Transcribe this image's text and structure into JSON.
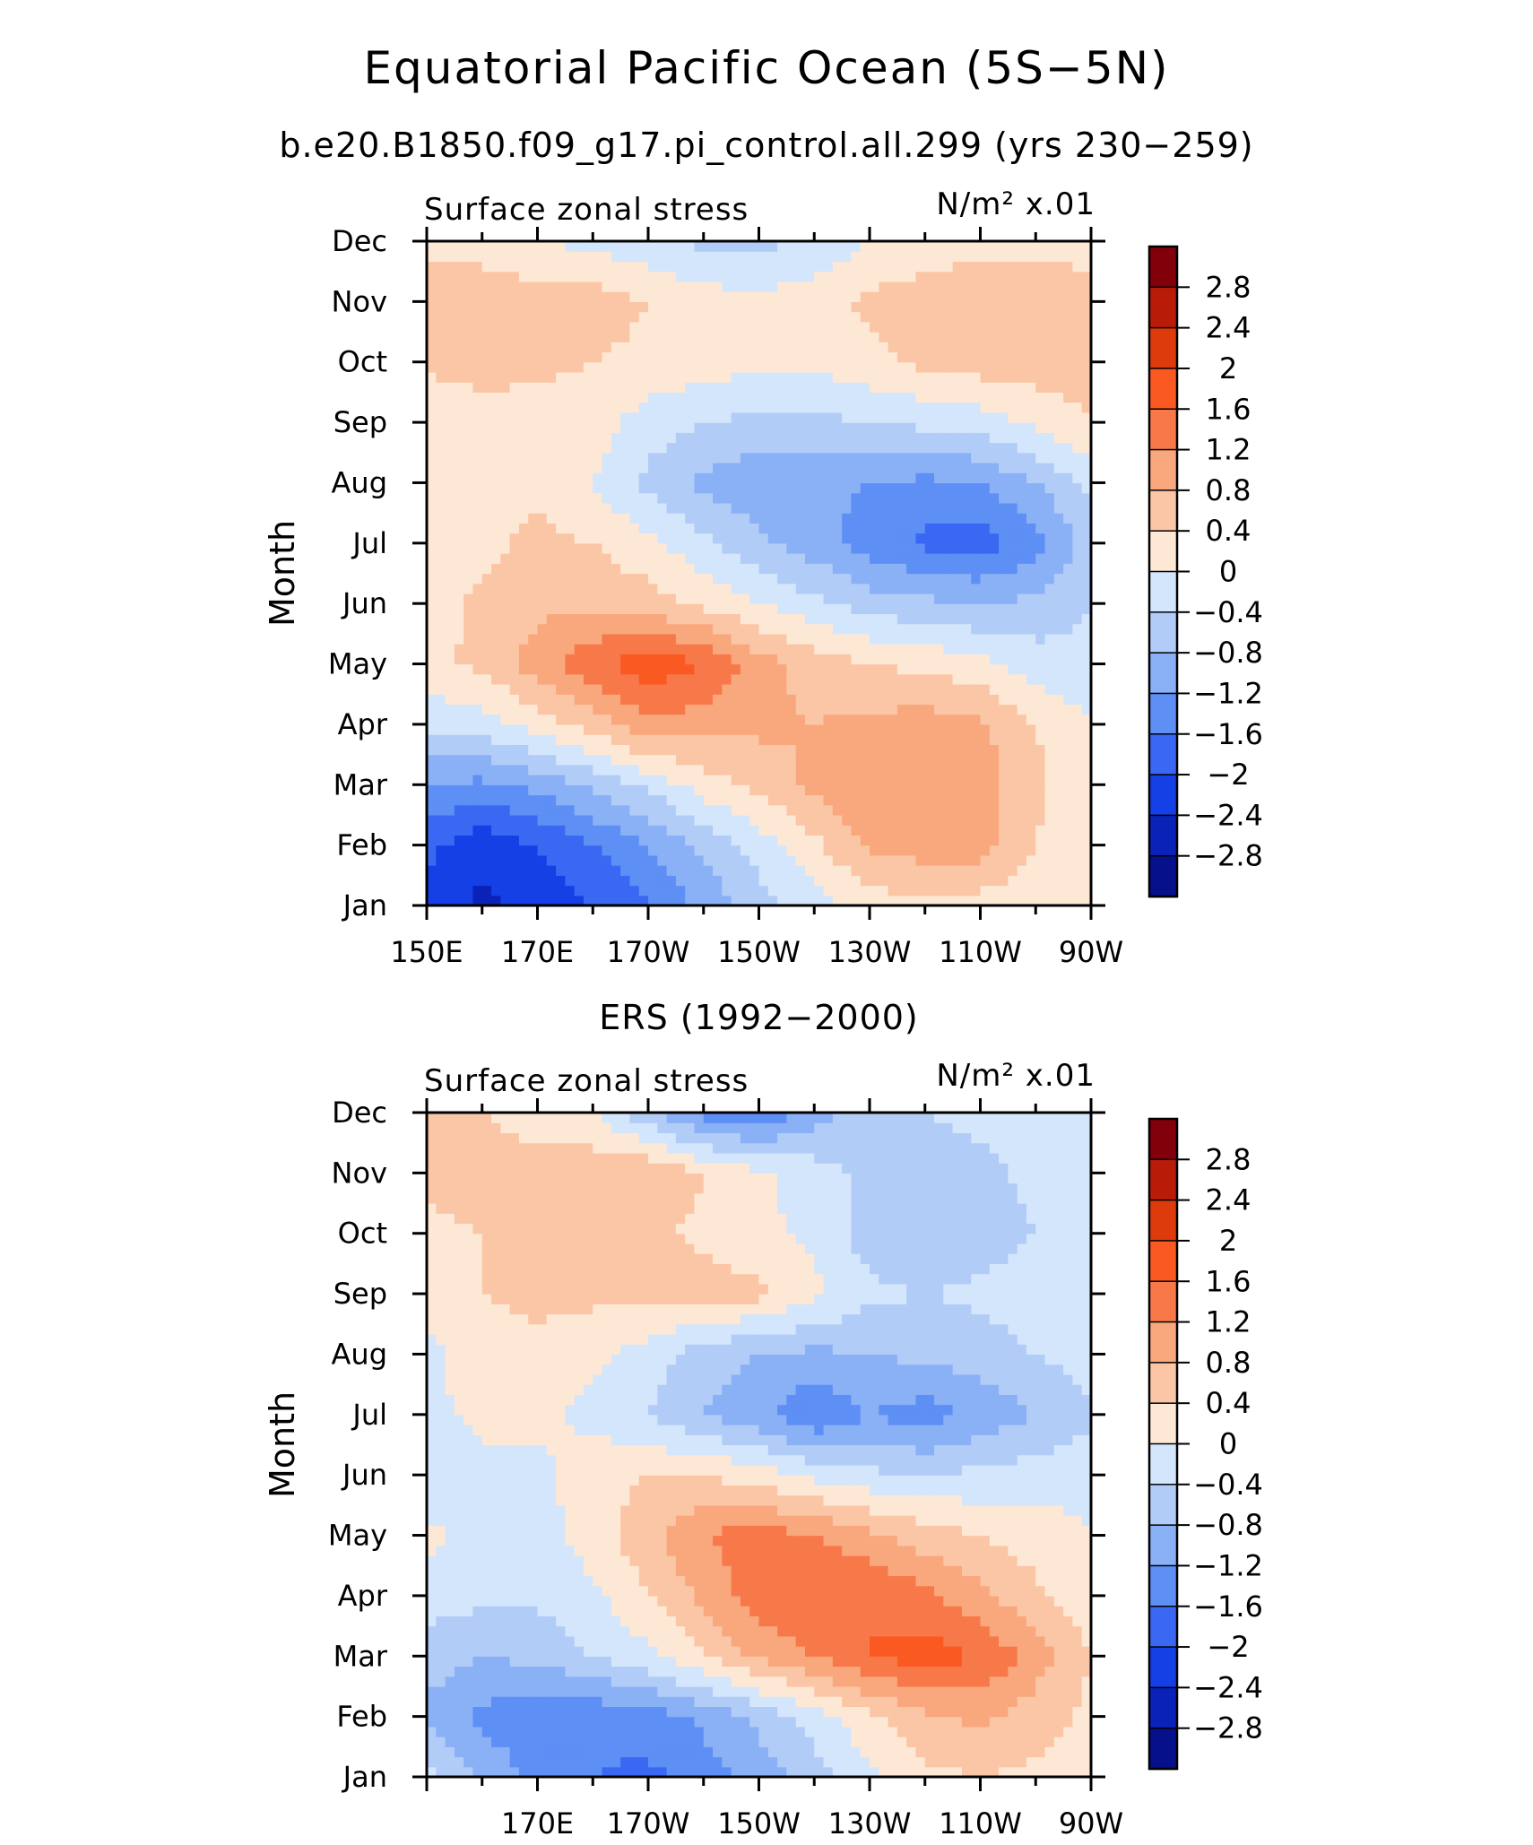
{
  "title": "Equatorial Pacific Ocean (5S−5N)",
  "subtitle": "b.e20.B1850.f09_g17.pi_control.all.299 (yrs 230−259)",
  "chart_data": [
    {
      "type": "heatmap",
      "panel_title": "",
      "variable": "Surface zonal stress",
      "units": "N/m² x.01",
      "ylabel": "Month",
      "xlabel": "",
      "x_tick_labels": [
        "150E",
        "170E",
        "170W",
        "150W",
        "130W",
        "110W",
        "90W"
      ],
      "x_range_deg_east": [
        150,
        270
      ],
      "y_tick_labels": [
        "Jan",
        "Feb",
        "Mar",
        "Apr",
        "May",
        "Jun",
        "Jul",
        "Aug",
        "Sep",
        "Oct",
        "Nov",
        "Dec"
      ],
      "colorbar_labels": [
        "2.8",
        "2.4",
        "2",
        "1.6",
        "1.2",
        "0.8",
        "0.4",
        "0",
        "−0.4",
        "−0.8",
        "−1.2",
        "−1.6",
        "−2",
        "−2.4",
        "−2.8"
      ],
      "colorbar_colors": [
        "#82000a",
        "#b81c08",
        "#dd3b0c",
        "#fa5a22",
        "#f7794a",
        "#f9a87e",
        "#fbc6a6",
        "#fde8d6",
        "#d4e6fb",
        "#b2ccf8",
        "#8ab0f6",
        "#5e8ff5",
        "#3a68f2",
        "#1440e6",
        "#0a22b8",
        "#05108a"
      ],
      "x_grid_deg_east": [
        150,
        160,
        170,
        180,
        190,
        200,
        210,
        220,
        230,
        240,
        250,
        260,
        270
      ],
      "values": [
        [
          -2.1,
          -2.5,
          -2.3,
          -2.0,
          -1.6,
          -1.1,
          -0.6,
          -0.2,
          0.2,
          0.3,
          0.2,
          0.1,
          0.0
        ],
        [
          -1.9,
          -2.3,
          -2.0,
          -1.6,
          -1.2,
          -0.7,
          -0.2,
          0.3,
          0.9,
          1.0,
          1.0,
          0.4,
          0.1
        ],
        [
          -1.2,
          -1.3,
          -1.1,
          -0.7,
          -0.3,
          0.2,
          0.5,
          0.9,
          1.1,
          1.2,
          1.0,
          0.5,
          0.1
        ],
        [
          -0.3,
          -0.2,
          0.2,
          0.6,
          1.1,
          1.0,
          0.9,
          0.8,
          0.9,
          1.0,
          0.9,
          0.4,
          0.0
        ],
        [
          0.3,
          0.5,
          1.0,
          1.5,
          1.9,
          1.6,
          1.0,
          0.6,
          0.4,
          0.3,
          0.1,
          -0.2,
          -0.3
        ],
        [
          0.2,
          0.5,
          0.7,
          0.7,
          0.6,
          0.3,
          0.0,
          -0.3,
          -0.6,
          -0.7,
          -0.8,
          -0.7,
          -0.4
        ],
        [
          0.1,
          0.3,
          0.5,
          0.4,
          0.1,
          -0.3,
          -0.7,
          -1.0,
          -1.4,
          -1.7,
          -1.8,
          -1.4,
          -0.6
        ],
        [
          0.1,
          0.2,
          0.3,
          0.0,
          -0.5,
          -0.9,
          -1.1,
          -1.1,
          -1.2,
          -1.3,
          -1.2,
          -0.8,
          -0.3
        ],
        [
          0.0,
          0.2,
          0.2,
          0.2,
          -0.2,
          -0.4,
          -0.5,
          -0.5,
          -0.4,
          -0.3,
          -0.2,
          0.1,
          0.4
        ],
        [
          0.5,
          0.6,
          0.5,
          0.4,
          0.3,
          0.2,
          0.1,
          0.1,
          0.3,
          0.5,
          0.6,
          0.6,
          0.6
        ],
        [
          0.7,
          0.7,
          0.6,
          0.6,
          0.4,
          0.2,
          0.1,
          0.2,
          0.5,
          0.6,
          0.6,
          0.6,
          0.5
        ],
        [
          0.3,
          0.2,
          0.0,
          -0.1,
          -0.3,
          -0.5,
          -0.5,
          -0.3,
          0.0,
          0.2,
          0.3,
          0.3,
          0.3
        ]
      ]
    },
    {
      "type": "heatmap",
      "panel_title": "ERS (1992−2000)",
      "variable": "Surface zonal stress",
      "units": "N/m² x.01",
      "ylabel": "Month",
      "xlabel": "",
      "x_tick_labels": [
        "170E",
        "170W",
        "150W",
        "130W",
        "110W",
        "90W"
      ],
      "x_range_deg_east": [
        150,
        270
      ],
      "y_tick_labels": [
        "Jan",
        "Feb",
        "Mar",
        "Apr",
        "May",
        "Jun",
        "Jul",
        "Aug",
        "Sep",
        "Oct",
        "Nov",
        "Dec"
      ],
      "colorbar_labels": [
        "2.8",
        "2.4",
        "2",
        "1.6",
        "1.2",
        "0.8",
        "0.4",
        "0",
        "−0.4",
        "−0.8",
        "−1.2",
        "−1.6",
        "−2",
        "−2.4",
        "−2.8"
      ],
      "colorbar_colors": [
        "#82000a",
        "#b81c08",
        "#dd3b0c",
        "#fa5a22",
        "#f7794a",
        "#f9a87e",
        "#fbc6a6",
        "#fde8d6",
        "#d4e6fb",
        "#b2ccf8",
        "#8ab0f6",
        "#5e8ff5",
        "#3a68f2",
        "#1440e6",
        "#0a22b8",
        "#05108a"
      ],
      "x_grid_deg_east": [
        150,
        160,
        170,
        180,
        190,
        200,
        210,
        220,
        230,
        240,
        250,
        260,
        270
      ],
      "values": [
        [
          -0.3,
          -0.9,
          -1.3,
          -1.6,
          -1.7,
          -1.4,
          -1.0,
          -0.6,
          -0.1,
          0.3,
          0.4,
          0.3,
          0.2
        ],
        [
          -0.9,
          -1.3,
          -1.5,
          -1.5,
          -1.4,
          -1.1,
          -0.7,
          -0.2,
          0.3,
          0.7,
          0.9,
          0.6,
          0.3
        ],
        [
          -0.6,
          -0.8,
          -0.7,
          -0.4,
          -0.1,
          0.4,
          0.9,
          1.2,
          1.6,
          1.8,
          1.6,
          1.0,
          0.4
        ],
        [
          -0.2,
          -0.3,
          -0.3,
          -0.1,
          0.4,
          0.9,
          1.4,
          1.6,
          1.6,
          1.3,
          0.9,
          0.5,
          0.1
        ],
        [
          0.1,
          -0.1,
          -0.2,
          0.2,
          0.7,
          1.2,
          1.4,
          1.2,
          0.9,
          0.6,
          0.4,
          0.2,
          0.0
        ],
        [
          -0.3,
          -0.1,
          -0.1,
          0.2,
          0.4,
          0.4,
          0.2,
          -0.1,
          -0.3,
          -0.4,
          -0.3,
          -0.2,
          -0.1
        ],
        [
          -0.1,
          0.1,
          0.1,
          -0.1,
          -0.4,
          -0.8,
          -1.1,
          -1.6,
          -1.2,
          -1.4,
          -1.1,
          -0.8,
          -0.5
        ],
        [
          -0.1,
          0.2,
          0.3,
          0.1,
          -0.2,
          -0.6,
          -0.8,
          -0.9,
          -0.8,
          -0.7,
          -0.6,
          -0.4,
          -0.2
        ],
        [
          0.1,
          0.4,
          0.5,
          0.5,
          0.6,
          0.6,
          0.5,
          0.1,
          -0.3,
          -0.4,
          -0.3,
          -0.2,
          -0.1
        ],
        [
          0.3,
          0.4,
          0.5,
          0.6,
          0.5,
          0.3,
          0.1,
          -0.1,
          -0.6,
          -0.8,
          -0.6,
          -0.4,
          -0.1
        ],
        [
          0.5,
          0.6,
          0.6,
          0.7,
          0.8,
          0.4,
          0.1,
          -0.2,
          -0.5,
          -0.6,
          -0.5,
          -0.3,
          -0.1
        ],
        [
          0.5,
          0.4,
          0.2,
          0.0,
          -0.7,
          -1.4,
          -1.6,
          -1.0,
          -0.6,
          -0.4,
          -0.3,
          -0.2,
          0.0
        ]
      ]
    }
  ]
}
